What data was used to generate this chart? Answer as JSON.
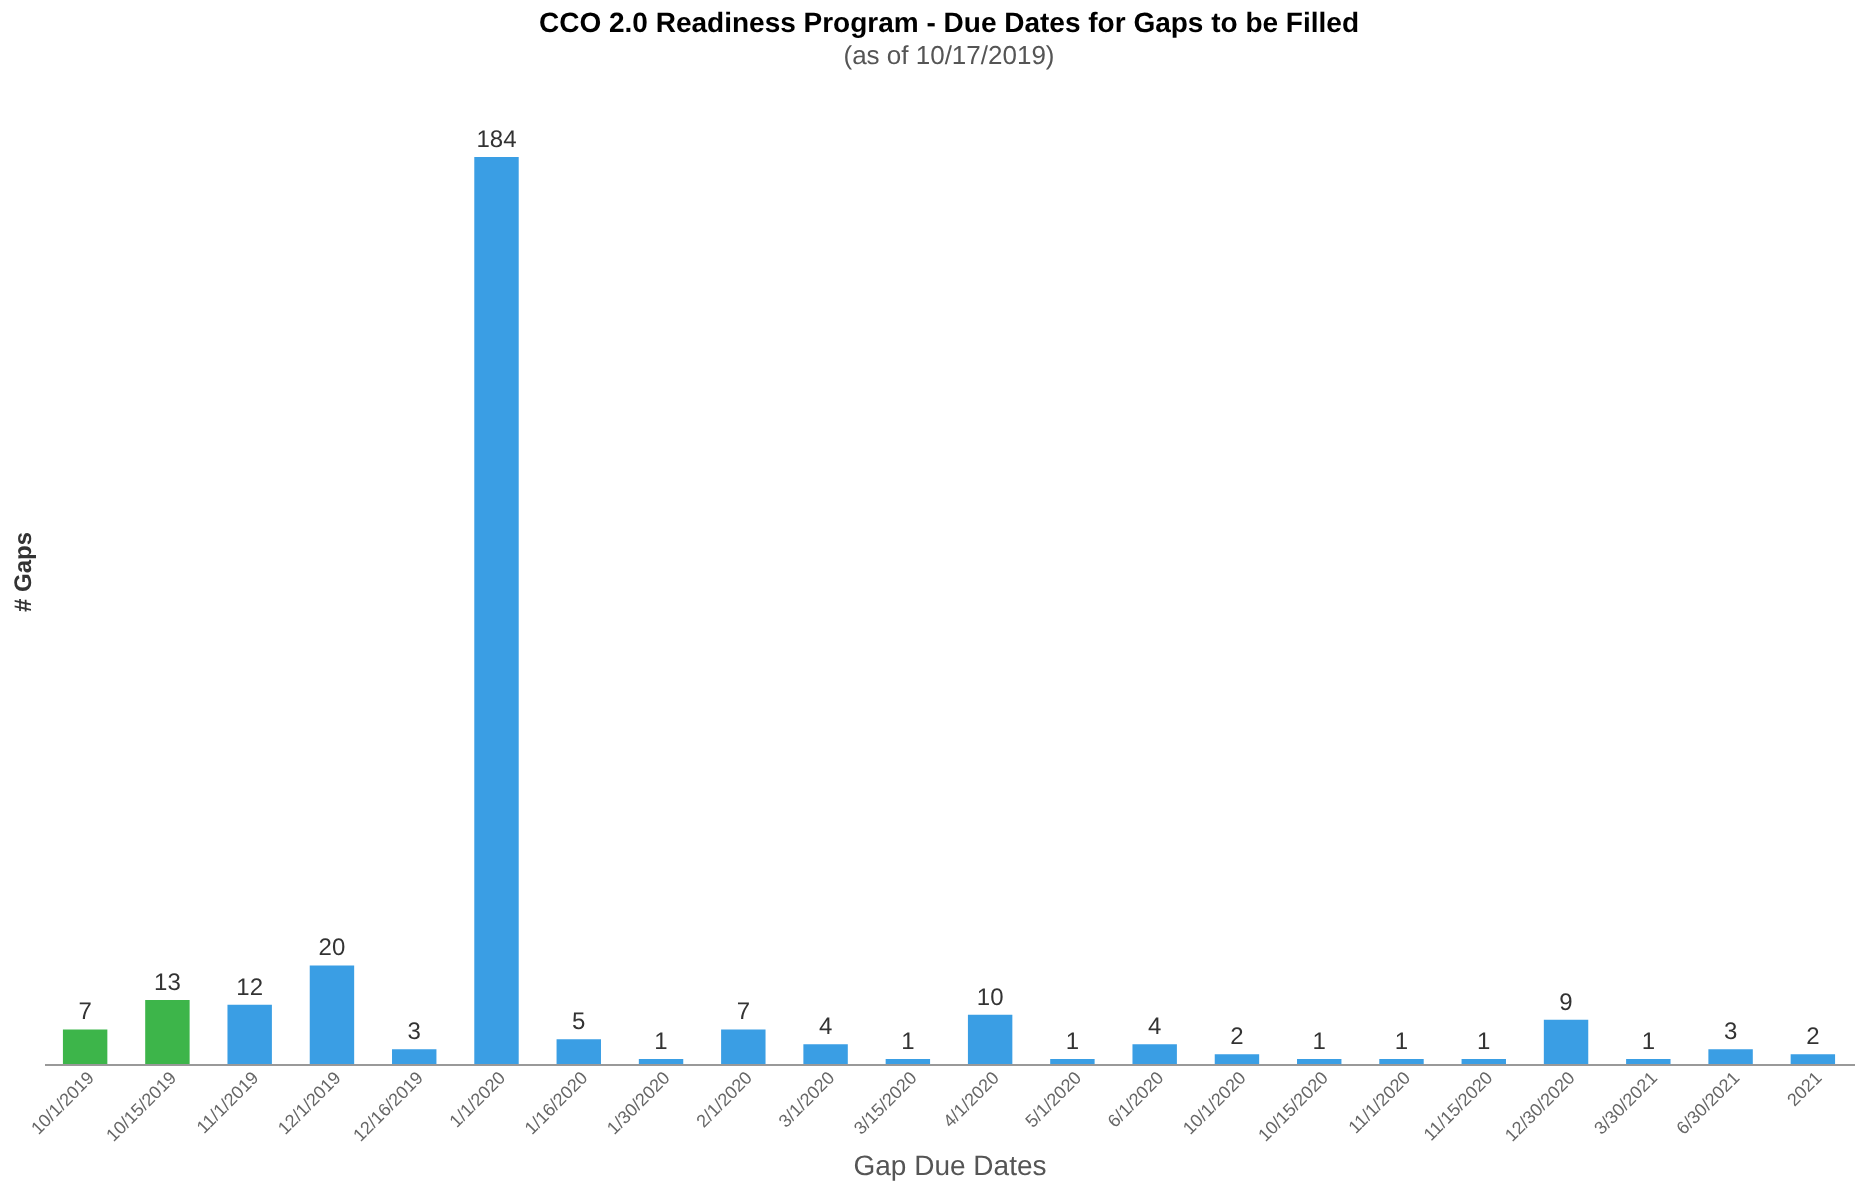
{
  "chart_data": {
    "type": "bar",
    "title": "CCO 2.0 Readiness Program - Due Dates for Gaps to be Filled",
    "subtitle": "(as of 10/17/2019)",
    "xlabel": "Gap Due Dates",
    "ylabel": "# Gaps",
    "categories": [
      "10/1/2019",
      "10/15/2019",
      "11/1/2019",
      "12/1/2019",
      "12/16/2019",
      "1/1/2020",
      "1/16/2020",
      "1/30/2020",
      "2/1/2020",
      "3/1/2020",
      "3/15/2020",
      "4/1/2020",
      "5/1/2020",
      "6/1/2020",
      "10/1/2020",
      "10/15/2020",
      "11/1/2020",
      "11/15/2020",
      "12/30/2020",
      "3/30/2021",
      "6/30/2021",
      "2021"
    ],
    "values": [
      7,
      13,
      12,
      20,
      3,
      184,
      5,
      1,
      7,
      4,
      1,
      10,
      1,
      4,
      2,
      1,
      1,
      1,
      9,
      1,
      3,
      2
    ],
    "colors": [
      "#3db54a",
      "#3db54a",
      "#3a9ee4",
      "#3a9ee4",
      "#3a9ee4",
      "#3a9ee4",
      "#3a9ee4",
      "#3a9ee4",
      "#3a9ee4",
      "#3a9ee4",
      "#3a9ee4",
      "#3a9ee4",
      "#3a9ee4",
      "#3a9ee4",
      "#3a9ee4",
      "#3a9ee4",
      "#3a9ee4",
      "#3a9ee4",
      "#3a9ee4",
      "#3a9ee4",
      "#3a9ee4",
      "#3a9ee4"
    ],
    "data_labels": true,
    "tick_labels": "x",
    "grid": false
  }
}
